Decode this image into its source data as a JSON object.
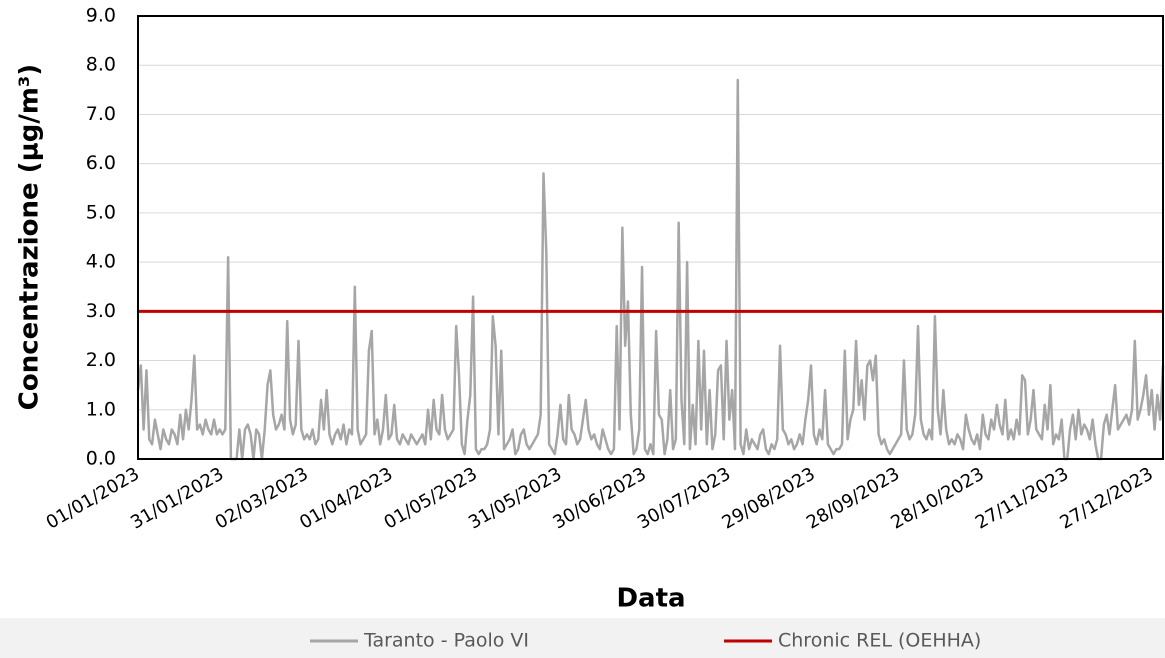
{
  "chart_data": {
    "type": "line",
    "y_label": "Concentrazione (µg/m³)",
    "x_label": "Data",
    "categories": [
      "01/01/2023",
      null,
      null,
      null,
      null,
      null,
      null,
      null,
      null,
      null,
      null,
      null,
      null,
      null,
      null,
      null,
      null,
      null,
      null,
      null,
      null,
      null,
      null,
      null,
      null,
      null,
      null,
      null,
      null,
      null,
      "31/01/2023",
      null,
      null,
      null,
      null,
      null,
      null,
      null,
      null,
      null,
      null,
      null,
      null,
      null,
      null,
      null,
      null,
      null,
      null,
      null,
      null,
      null,
      null,
      null,
      null,
      null,
      null,
      null,
      null,
      null,
      "02/03/2023",
      null,
      null,
      null,
      null,
      null,
      null,
      null,
      null,
      null,
      null,
      null,
      null,
      null,
      null,
      null,
      null,
      null,
      null,
      null,
      null,
      null,
      null,
      null,
      null,
      null,
      null,
      null,
      null,
      null,
      "01/04/2023",
      null,
      null,
      null,
      null,
      null,
      null,
      null,
      null,
      null,
      null,
      null,
      null,
      null,
      null,
      null,
      null,
      null,
      null,
      null,
      null,
      null,
      null,
      null,
      null,
      null,
      null,
      null,
      null,
      null,
      "01/05/2023",
      null,
      null,
      null,
      null,
      null,
      null,
      null,
      null,
      null,
      null,
      null,
      null,
      null,
      null,
      null,
      null,
      null,
      null,
      null,
      null,
      null,
      null,
      null,
      null,
      null,
      null,
      null,
      null,
      null,
      "31/05/2023",
      null,
      null,
      null,
      null,
      null,
      null,
      null,
      null,
      null,
      null,
      null,
      null,
      null,
      null,
      null,
      null,
      null,
      null,
      null,
      null,
      null,
      null,
      null,
      null,
      null,
      null,
      null,
      null,
      null,
      "30/06/2023",
      null,
      null,
      null,
      null,
      null,
      null,
      null,
      null,
      null,
      null,
      null,
      null,
      null,
      null,
      null,
      null,
      null,
      null,
      null,
      null,
      null,
      null,
      null,
      null,
      null,
      null,
      null,
      null,
      null,
      "30/07/2023",
      null,
      null,
      null,
      null,
      null,
      null,
      null,
      null,
      null,
      null,
      null,
      null,
      null,
      null,
      null,
      null,
      null,
      null,
      null,
      null,
      null,
      null,
      null,
      null,
      null,
      null,
      null,
      null,
      null,
      "29/08/2023",
      null,
      null,
      null,
      null,
      null,
      null,
      null,
      null,
      null,
      null,
      null,
      null,
      null,
      null,
      null,
      null,
      null,
      null,
      null,
      null,
      null,
      null,
      null,
      null,
      null,
      null,
      null,
      null,
      null,
      "28/09/2023",
      null,
      null,
      null,
      null,
      null,
      null,
      null,
      null,
      null,
      null,
      null,
      null,
      null,
      null,
      null,
      null,
      null,
      null,
      null,
      null,
      null,
      null,
      null,
      null,
      null,
      null,
      null,
      null,
      null,
      "28/10/2023",
      null,
      null,
      null,
      null,
      null,
      null,
      null,
      null,
      null,
      null,
      null,
      null,
      null,
      null,
      null,
      null,
      null,
      null,
      null,
      null,
      null,
      null,
      null,
      null,
      null,
      null,
      null,
      null,
      null,
      "27/11/2023",
      null,
      null,
      null,
      null,
      null,
      null,
      null,
      null,
      null,
      null,
      null,
      null,
      null,
      null,
      null,
      null,
      null,
      null,
      null,
      null,
      null,
      null,
      null,
      null,
      null,
      null,
      null,
      null,
      null,
      "27/12/2023",
      null,
      null,
      null,
      null
    ],
    "series": [
      {
        "name": "Taranto - Paolo VI",
        "color": "#a6a6a6",
        "values": [
          1.4,
          1.9,
          0.6,
          1.8,
          0.4,
          0.3,
          0.8,
          0.5,
          0.2,
          0.6,
          0.4,
          0.3,
          0.6,
          0.5,
          0.3,
          0.9,
          0.4,
          1.0,
          0.6,
          1.2,
          2.1,
          0.6,
          0.7,
          0.5,
          0.8,
          0.6,
          0.5,
          0.8,
          0.5,
          0.6,
          0.5,
          0.6,
          4.1,
          0.0,
          0.0,
          0.0,
          0.6,
          0.0,
          0.6,
          0.7,
          0.5,
          0.0,
          0.6,
          0.5,
          0.0,
          0.6,
          1.5,
          1.8,
          0.9,
          0.6,
          0.7,
          0.9,
          0.6,
          2.8,
          0.8,
          0.5,
          0.7,
          2.4,
          0.6,
          0.4,
          0.5,
          0.4,
          0.6,
          0.3,
          0.4,
          1.2,
          0.6,
          1.4,
          0.5,
          0.3,
          0.5,
          0.6,
          0.4,
          0.7,
          0.3,
          0.6,
          0.5,
          3.5,
          0.6,
          0.3,
          0.4,
          0.5,
          2.2,
          2.6,
          0.5,
          0.8,
          0.3,
          0.6,
          1.3,
          0.4,
          0.5,
          1.1,
          0.4,
          0.3,
          0.5,
          0.4,
          0.3,
          0.5,
          0.4,
          0.3,
          0.4,
          0.5,
          0.3,
          1.0,
          0.4,
          1.2,
          0.6,
          0.5,
          1.3,
          0.6,
          0.4,
          0.5,
          0.6,
          2.7,
          1.7,
          0.3,
          0.1,
          0.8,
          1.3,
          3.3,
          0.2,
          0.1,
          0.2,
          0.2,
          0.3,
          0.6,
          2.9,
          2.3,
          0.5,
          2.2,
          0.2,
          0.3,
          0.4,
          0.6,
          0.1,
          0.2,
          0.5,
          0.6,
          0.3,
          0.2,
          0.3,
          0.4,
          0.5,
          0.9,
          5.8,
          4.2,
          0.3,
          0.2,
          0.1,
          0.5,
          1.1,
          0.4,
          0.3,
          1.3,
          0.6,
          0.5,
          0.3,
          0.4,
          0.8,
          1.2,
          0.6,
          0.4,
          0.5,
          0.3,
          0.2,
          0.6,
          0.4,
          0.2,
          0.1,
          0.2,
          2.7,
          0.6,
          4.7,
          2.3,
          3.2,
          0.9,
          0.1,
          0.2,
          0.6,
          3.9,
          0.2,
          0.1,
          0.3,
          0.1,
          2.6,
          0.9,
          0.8,
          0.1,
          0.4,
          1.4,
          0.2,
          0.4,
          4.8,
          1.2,
          0.3,
          4.0,
          0.2,
          1.1,
          0.3,
          2.4,
          0.6,
          2.2,
          0.3,
          1.4,
          0.2,
          0.5,
          1.8,
          1.9,
          0.4,
          2.4,
          0.8,
          1.4,
          0.2,
          7.7,
          0.3,
          0.1,
          0.6,
          0.2,
          0.4,
          0.3,
          0.2,
          0.5,
          0.6,
          0.2,
          0.1,
          0.3,
          0.2,
          0.4,
          2.3,
          0.6,
          0.5,
          0.3,
          0.4,
          0.2,
          0.3,
          0.5,
          0.3,
          0.8,
          1.2,
          1.9,
          0.5,
          0.3,
          0.6,
          0.4,
          1.4,
          0.3,
          0.2,
          0.1,
          0.2,
          0.2,
          0.3,
          2.2,
          0.4,
          0.8,
          1.0,
          2.4,
          1.1,
          1.6,
          0.8,
          1.9,
          2.0,
          1.6,
          2.1,
          0.5,
          0.3,
          0.4,
          0.2,
          0.1,
          0.2,
          0.3,
          0.4,
          0.5,
          2.0,
          0.6,
          0.4,
          0.5,
          0.9,
          2.7,
          0.8,
          0.5,
          0.4,
          0.6,
          0.4,
          2.9,
          1.0,
          0.5,
          1.4,
          0.6,
          0.3,
          0.4,
          0.3,
          0.5,
          0.4,
          0.2,
          0.9,
          0.6,
          0.4,
          0.3,
          0.5,
          0.2,
          0.9,
          0.5,
          0.4,
          0.8,
          0.6,
          1.1,
          0.7,
          0.5,
          1.2,
          0.4,
          0.6,
          0.4,
          0.8,
          0.5,
          1.7,
          1.6,
          0.5,
          0.8,
          1.4,
          0.6,
          0.5,
          0.4,
          1.1,
          0.6,
          1.5,
          0.3,
          0.5,
          0.4,
          0.8,
          0.0,
          0.0,
          0.6,
          0.9,
          0.4,
          1.0,
          0.5,
          0.7,
          0.6,
          0.4,
          0.8,
          0.3,
          0.0,
          0.0,
          0.7,
          0.9,
          0.5,
          1.0,
          1.5,
          0.6,
          0.7,
          0.8,
          0.9,
          0.7,
          1.0,
          2.4,
          0.8,
          1.0,
          1.3,
          1.7,
          0.9,
          1.4,
          0.6,
          1.3,
          0.8,
          1.9
        ]
      }
    ],
    "reference_lines": [
      {
        "name": "Chronic REL (OEHHA)",
        "color": "#c00000",
        "value": 3
      }
    ],
    "ylim": [
      0,
      9
    ],
    "yticks": [
      {
        "value": 0,
        "label": "0.0"
      },
      {
        "value": 1,
        "label": "1.0"
      },
      {
        "value": 2,
        "label": "2.0"
      },
      {
        "value": 3,
        "label": "3.0"
      },
      {
        "value": 4,
        "label": "4.0"
      },
      {
        "value": 5,
        "label": "5.0"
      },
      {
        "value": 6,
        "label": "6.0"
      },
      {
        "value": 7,
        "label": "7.0"
      },
      {
        "value": 8,
        "label": "8.0"
      },
      {
        "value": 9,
        "label": "9.0"
      }
    ],
    "grid": true,
    "legend": "bottom"
  }
}
